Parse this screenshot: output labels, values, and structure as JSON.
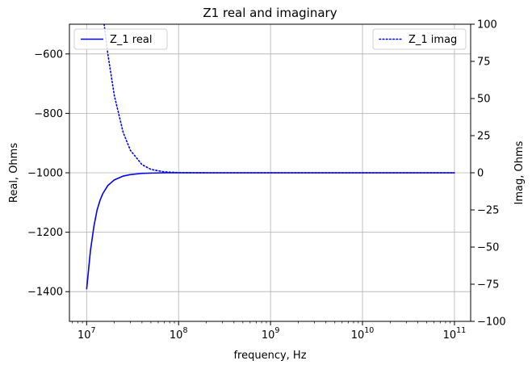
{
  "chart_data": {
    "type": "line",
    "title": "Z1 real and imaginary",
    "xlabel": "frequency, Hz",
    "ylabel": "Real, Ohms",
    "y2label": "Imag, Ohms",
    "x_scale": "log",
    "xlim": [
      6500000,
      150000000000
    ],
    "ylim": [
      -1500,
      -500
    ],
    "y2lim": [
      -100,
      100
    ],
    "x_ticks": [
      10000000,
      100000000,
      1000000000,
      10000000000,
      100000000000
    ],
    "x_tick_labels": [
      {
        "base": "10",
        "exp": "7"
      },
      {
        "base": "10",
        "exp": "8"
      },
      {
        "base": "10",
        "exp": "9"
      },
      {
        "base": "10",
        "exp": "10"
      },
      {
        "base": "10",
        "exp": "11"
      }
    ],
    "y_ticks": [
      -1400,
      -1200,
      -1000,
      -800,
      -600
    ],
    "y_tick_labels": [
      "−1400",
      "−1200",
      "−1000",
      "−800",
      "−600"
    ],
    "y2_ticks": [
      -100,
      -75,
      -50,
      -25,
      0,
      25,
      50,
      75,
      100
    ],
    "y2_tick_labels": [
      "−100",
      "−75",
      "−50",
      "−25",
      "0",
      "25",
      "50",
      "75",
      "100"
    ],
    "grid": true,
    "series": [
      {
        "name": "Z_1 real",
        "axis": "left",
        "style": "solid",
        "color": "#0000ff",
        "legend_position": "top-left",
        "x": [
          10000000,
          11000000,
          12000000,
          13000000,
          14000000,
          15000000,
          17000000,
          20000000,
          25000000,
          30000000,
          40000000,
          50000000,
          70000000,
          100000000,
          1000000000,
          10000000000,
          100000000000
        ],
        "y": [
          -1392,
          -1262,
          -1180,
          -1125,
          -1092,
          -1070,
          -1043,
          -1024,
          -1011,
          -1006,
          -1002,
          -1001,
          -1000,
          -1000,
          -1000,
          -1000,
          -1000
        ]
      },
      {
        "name": "Z_1 imag",
        "axis": "right",
        "style": "dotted",
        "color": "#0000ff",
        "legend_position": "top-right",
        "x": [
          15500000,
          17000000,
          20000000,
          25000000,
          30000000,
          40000000,
          50000000,
          70000000,
          100000000,
          200000000,
          1000000000,
          10000000000,
          100000000000
        ],
        "y": [
          100,
          80,
          52,
          27,
          15,
          5.5,
          2.3,
          0.6,
          0.15,
          0,
          0,
          0,
          0
        ]
      }
    ]
  }
}
